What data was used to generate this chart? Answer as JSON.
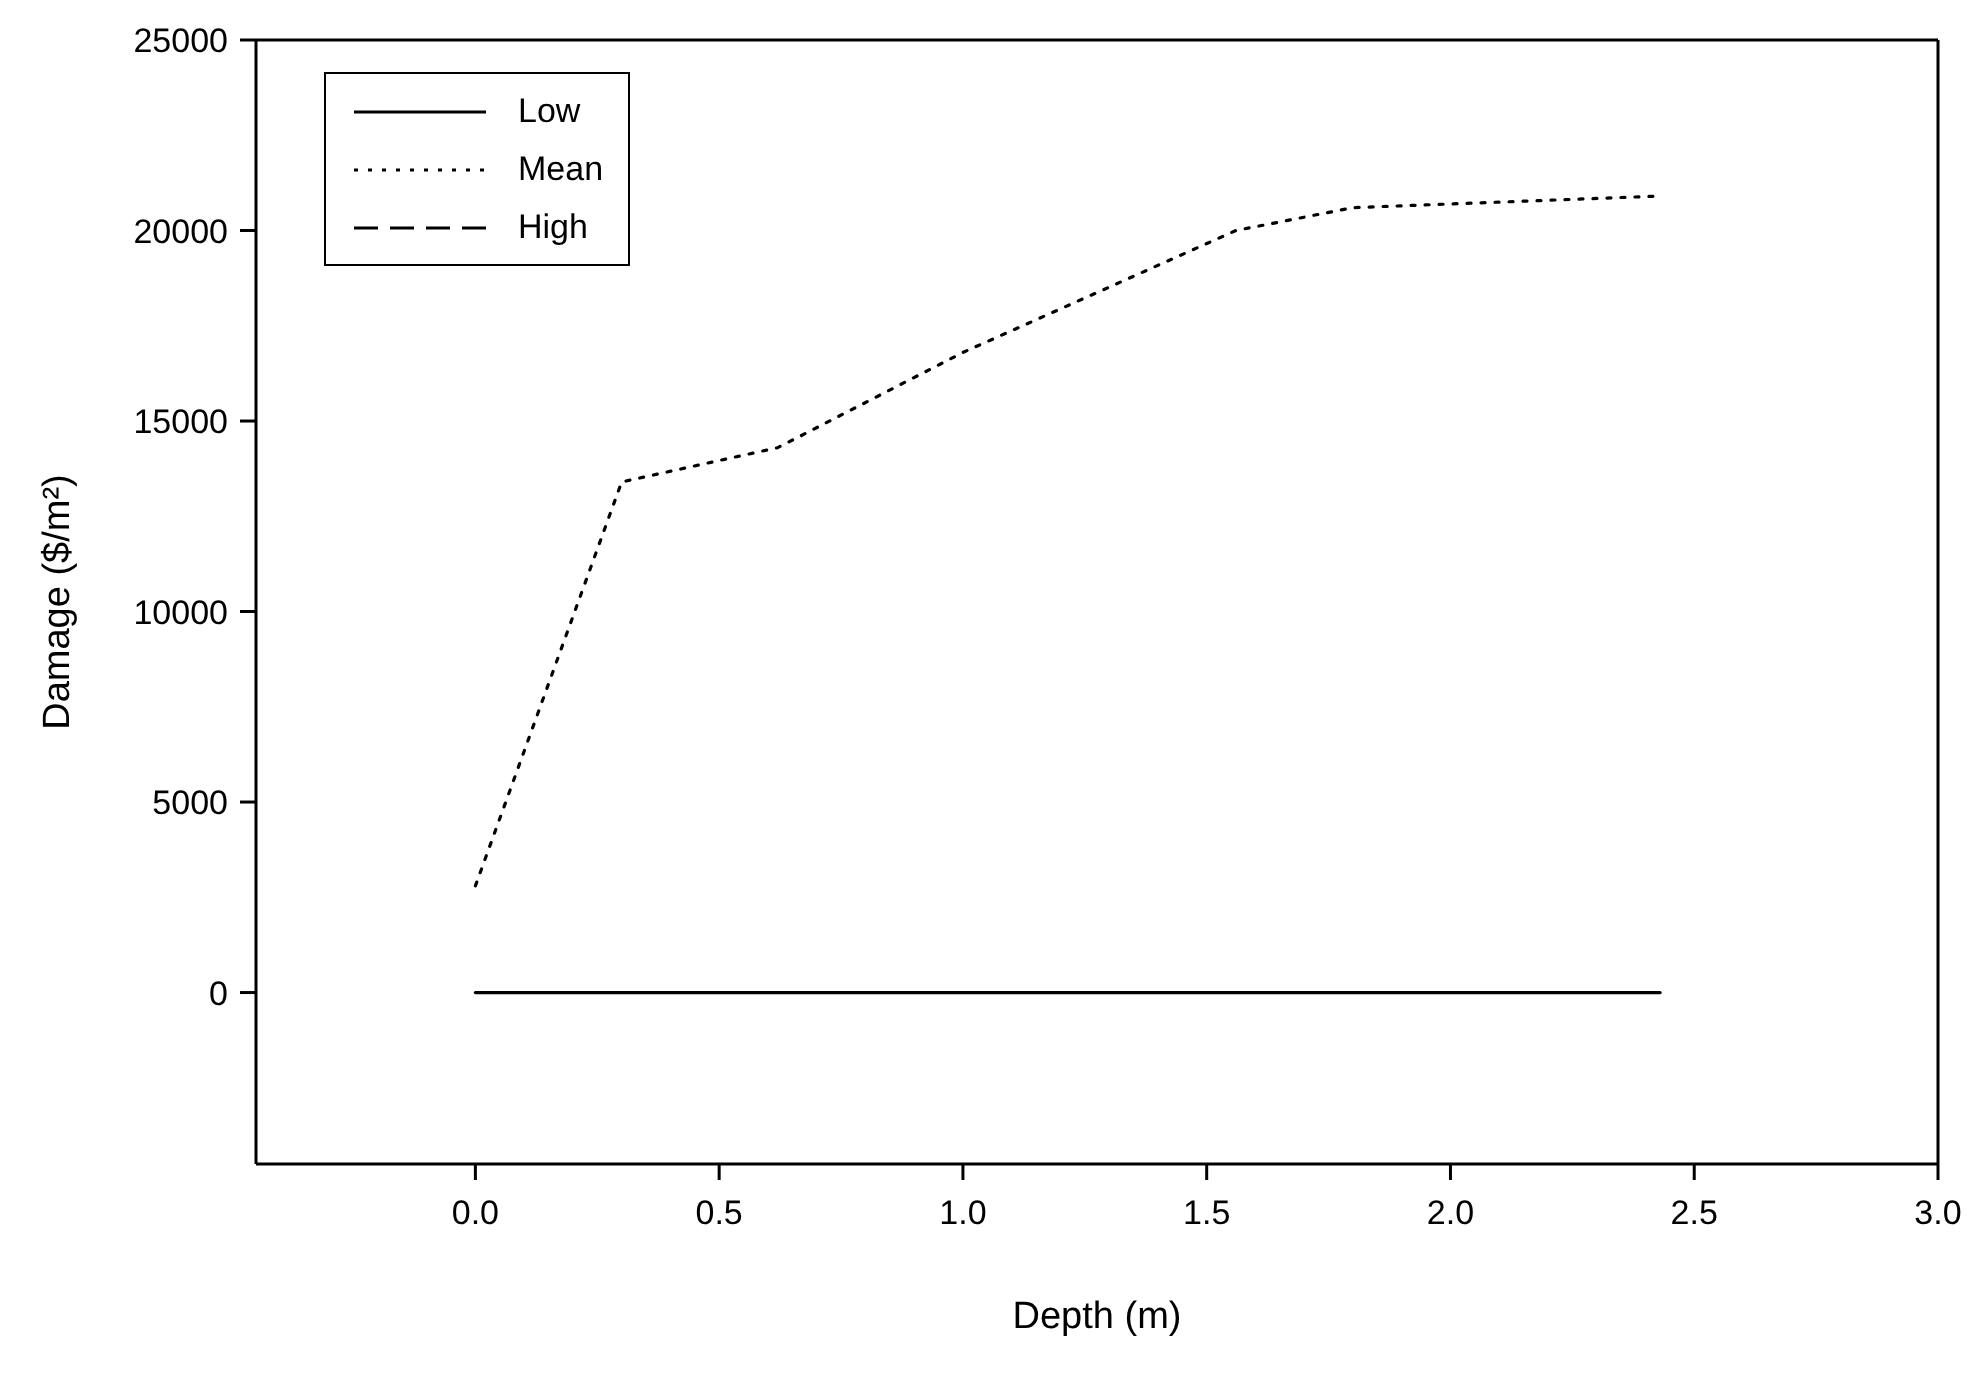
{
  "chart_data": {
    "type": "line",
    "xlabel": "Depth (m)",
    "ylabel": "Damage ($/m²)",
    "xlim": [
      -0.45,
      3.0
    ],
    "xticks": [
      {
        "value": 0,
        "label": "0.0"
      },
      {
        "value": 0.5,
        "label": "0.5"
      },
      {
        "value": 1,
        "label": "1.0"
      },
      {
        "value": 1.5,
        "label": "1.5"
      },
      {
        "value": 2,
        "label": "2.0"
      },
      {
        "value": 2.5,
        "label": "2.5"
      },
      {
        "value": 3,
        "label": "3.0"
      }
    ],
    "ylim": [
      -4500,
      25000
    ],
    "yticks": [
      0,
      5000,
      10000,
      15000,
      20000,
      25000
    ],
    "grid": false,
    "legend": "top left",
    "marker": "none",
    "series": [
      {
        "name": "Low",
        "color": "#000000",
        "line_style": "solid",
        "x": [
          0,
          2.43
        ],
        "values": [
          0,
          0
        ]
      },
      {
        "name": "Mean",
        "color": "#000000",
        "line_style": "dotted",
        "x": [
          0,
          0.3,
          0.62,
          1.0,
          1.56,
          1.8,
          2.42
        ],
        "values": [
          2800,
          13400,
          14300,
          16800,
          20000,
          20600,
          20900
        ]
      },
      {
        "name": "High",
        "color": "#000000",
        "line_style": "dashed"
      }
    ]
  }
}
